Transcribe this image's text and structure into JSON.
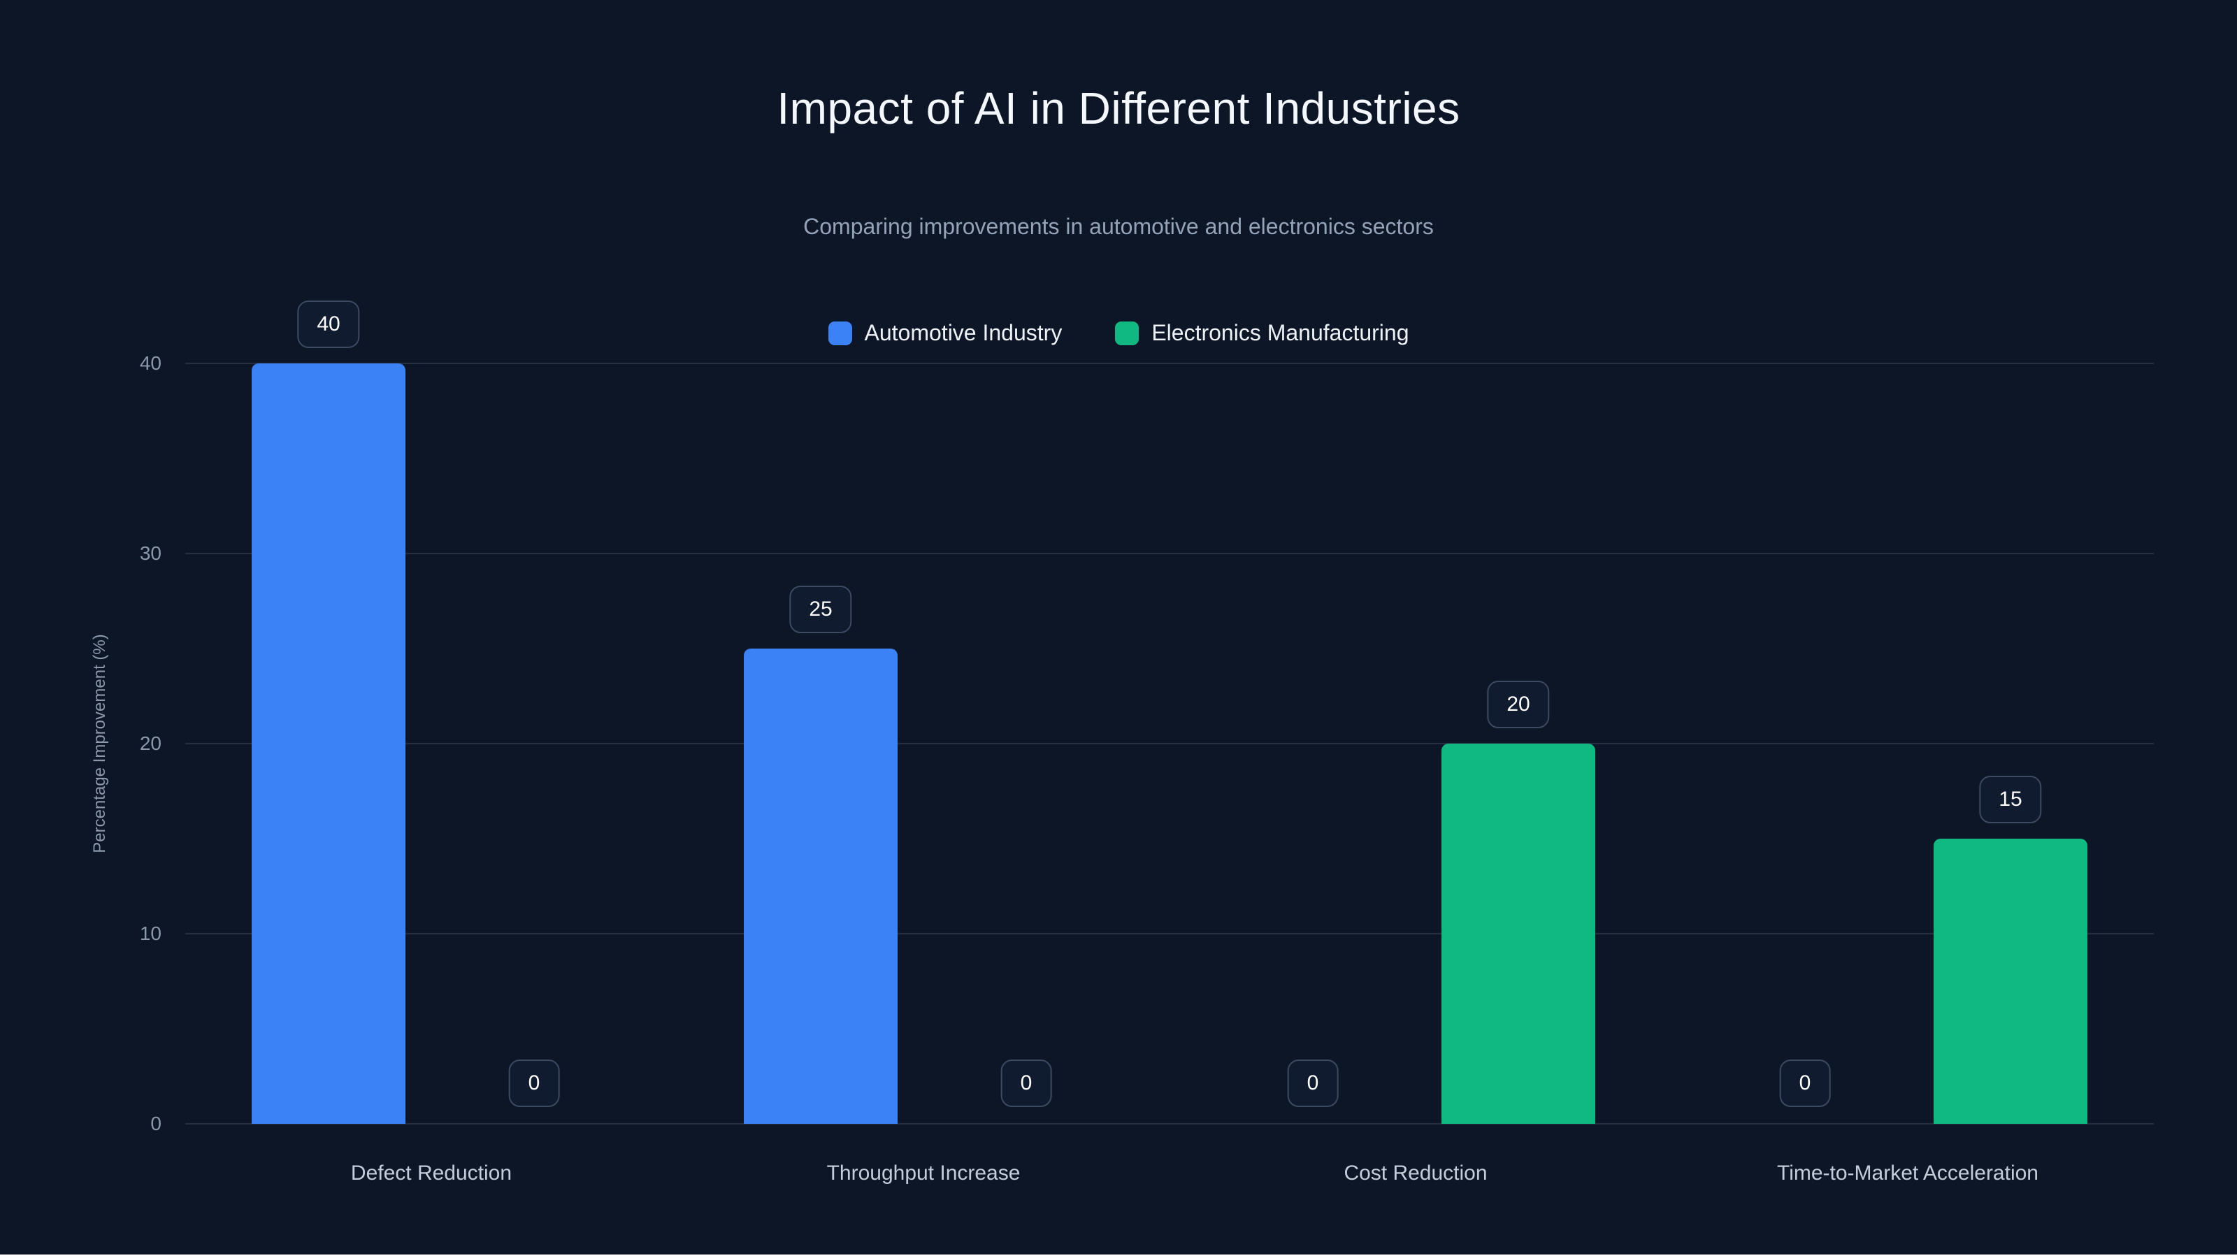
{
  "chart_data": {
    "type": "bar",
    "title": "Impact of AI in Different Industries",
    "subtitle": "Comparing improvements in automotive and electronics sectors",
    "ylabel": "Percentage Improvement (%)",
    "categories": [
      "Defect Reduction",
      "Throughput Increase",
      "Cost Reduction",
      "Time-to-Market Acceleration"
    ],
    "series": [
      {
        "name": "Automotive Industry",
        "color": "#3b82f6",
        "values": [
          40,
          25,
          0,
          0
        ]
      },
      {
        "name": "Electronics Manufacturing",
        "color": "#10b981",
        "values": [
          0,
          0,
          20,
          15
        ]
      }
    ],
    "ylim": [
      0,
      40
    ],
    "yticks": [
      0,
      10,
      20,
      30,
      40
    ],
    "grid": true,
    "legend_position": "top",
    "value_labels": true,
    "colors": {
      "background": "#0d1627",
      "title_text": "#f4f8fc",
      "subtitle_text": "#94a3b8",
      "axis_text": "#8b99ad",
      "gridline": "#242f44",
      "badge_border": "#3c4a61"
    }
  }
}
